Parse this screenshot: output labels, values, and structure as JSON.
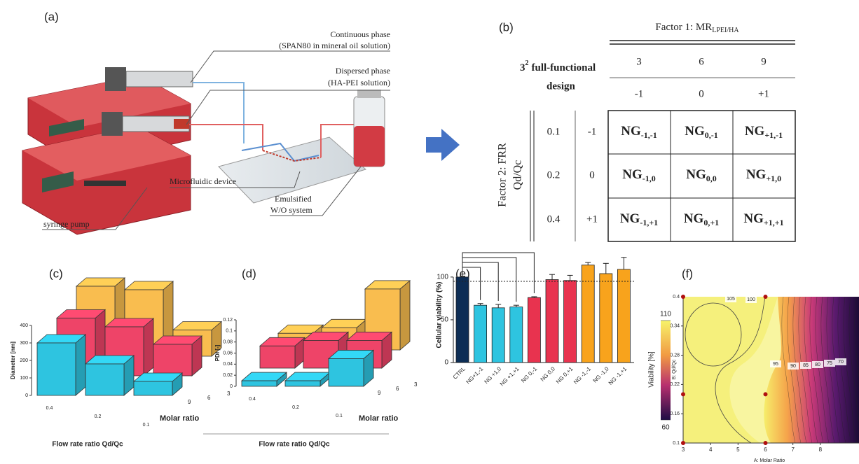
{
  "panel_labels": [
    "(a)",
    "(b)",
    "(c)",
    "(d)",
    "(e)",
    "(f)"
  ],
  "schematic": {
    "continuous_phase": "Continuous phase",
    "continuous_detail": "(SPAN80 in mineral oil solution)",
    "dispersed_phase": "Dispersed phase",
    "dispersed_detail": "(HA-PEI solution)",
    "device": "Microfluidic device",
    "emulsion_1": "Emulsified",
    "emulsion_2": "W/O system",
    "pump": "syringe pump"
  },
  "design_table": {
    "design_base": "3",
    "design_exp": "2",
    "design_line1": "full-functional",
    "design_line2": "design",
    "factor1": "Factor 1: MR",
    "factor1_sub": "LPEI/HA",
    "factor1_levels": [
      "3",
      "6",
      "9"
    ],
    "factor1_codes": [
      "-1",
      "0",
      "+1"
    ],
    "factor2_line1": "Factor 2: FRR",
    "factor2_line2": "Qd/Qc",
    "factor2_levels": [
      "0.1",
      "0.2",
      "0.4"
    ],
    "factor2_codes": [
      "-1",
      "0",
      "+1"
    ],
    "cells": [
      [
        {
          "main": "NG",
          "sub": "-1,-1"
        },
        {
          "main": "NG",
          "sub": "0,-1"
        },
        {
          "main": "NG",
          "sub": "+1,-1"
        }
      ],
      [
        {
          "main": "NG",
          "sub": "-1,0"
        },
        {
          "main": "NG",
          "sub": "0,0"
        },
        {
          "main": "NG",
          "sub": "+1,0"
        }
      ],
      [
        {
          "main": "NG",
          "sub": "-1,+1"
        },
        {
          "main": "NG",
          "sub": "0,+1"
        },
        {
          "main": "NG",
          "sub": "+1,+1"
        }
      ]
    ]
  },
  "chart_data": [
    {
      "type": "bar3d",
      "ylabel": "Diameter [nm]",
      "xlabel": "Flow rate ratio Qd/Qc",
      "zlabel": "Molar ratio",
      "categories": [
        "0.4",
        "0.2",
        "0.1"
      ],
      "depth_categories": [
        "3",
        "6",
        "9"
      ],
      "series": [
        {
          "color": "#f9bd4f",
          "values": [
            400,
            380,
            150
          ]
        },
        {
          "color": "#ee4468",
          "values": [
            330,
            280,
            180
          ]
        },
        {
          "color": "#2ec4e0",
          "values": [
            300,
            180,
            80
          ]
        }
      ],
      "ylim": [
        0,
        400
      ],
      "yticks": [
        0,
        100,
        200,
        300,
        400
      ]
    },
    {
      "type": "bar3d",
      "ylabel": "PDI [-]",
      "xlabel": "Flow rate ratio Qd/Qc",
      "zlabel": "Molar ratio",
      "categories": [
        "0.4",
        "0.2",
        "0.1"
      ],
      "depth_categories": [
        "3",
        "6",
        "9"
      ],
      "series": [
        {
          "color": "#f9bd4f",
          "values": [
            0.03,
            0.04,
            0.11
          ]
        },
        {
          "color": "#ee4468",
          "values": [
            0.04,
            0.05,
            0.05
          ]
        },
        {
          "color": "#2ec4e0",
          "values": [
            0.01,
            0.01,
            0.05
          ]
        }
      ],
      "ylim": [
        0,
        0.12
      ],
      "yticks": [
        0,
        0.02,
        0.04,
        0.06,
        0.08,
        0.1,
        0.12
      ]
    },
    {
      "type": "bar",
      "ylabel": "Cellular viability (%)",
      "categories": [
        "CTRL",
        "NG+1,-1",
        "NG +1,0",
        "NG +1,+1",
        "NG 0,-1",
        "NG 0,0",
        "NG 0,+1",
        "NG -1,-1",
        "NG -1,0",
        "NG -1,+1"
      ],
      "values": [
        100,
        67,
        64,
        65,
        76,
        97,
        96,
        114,
        104,
        109
      ],
      "errors": [
        1,
        2,
        4,
        2,
        1,
        6,
        6,
        3,
        12,
        14
      ],
      "colors": [
        "#0d2d55",
        "#2ec4e0",
        "#2ec4e0",
        "#2ec4e0",
        "#e8334f",
        "#e8334f",
        "#e8334f",
        "#f8a31c",
        "#f8a31c",
        "#f8a31c"
      ],
      "ylim": [
        0,
        140
      ],
      "yticks": [
        0,
        50,
        100
      ],
      "reference_line": 95
    },
    {
      "type": "contour",
      "xlabel": "A: Molar Ratio",
      "ylabel": "B: Qd/Qc",
      "colorbar_label": "Viability [%]",
      "xlim": [
        3,
        9
      ],
      "xticks": [
        3,
        4,
        5,
        6,
        7,
        8
      ],
      "ylim": [
        0.1,
        0.4
      ],
      "yticks": [
        0.1,
        0.16,
        0.22,
        0.28,
        0.34,
        0.4
      ],
      "clim": [
        60,
        110
      ],
      "cticks": [
        60,
        110
      ],
      "contour_labels": [
        "105",
        "100",
        "95",
        "90",
        "85",
        "80",
        "75",
        "70"
      ],
      "points": {
        "x": [
          3,
          3,
          3,
          6,
          6,
          6
        ],
        "y": [
          0.1,
          0.2,
          0.4,
          0.1,
          0.2,
          0.4
        ]
      }
    }
  ]
}
